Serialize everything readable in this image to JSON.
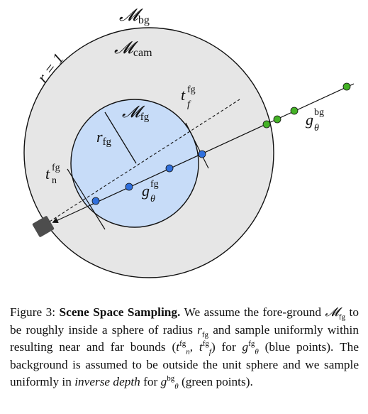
{
  "diagram": {
    "labels": {
      "m_bg": {
        "main": "𝓜",
        "sub": "bg"
      },
      "m_cam": {
        "main": "𝓜",
        "sub": "cam"
      },
      "radius_outer": "r = 1",
      "m_fg": {
        "main": "𝓜",
        "sub": "fg"
      },
      "r_fg": {
        "main": "r",
        "sub": "fg"
      },
      "t_f": {
        "main": "t",
        "sup": "fg",
        "sub": "f"
      },
      "t_n": {
        "main": "t",
        "sup": "fg",
        "sub": "n"
      },
      "g_fg": {
        "main": "g",
        "sup": "fg",
        "sub": "θ"
      },
      "g_bg": {
        "main": "g",
        "sup": "bg",
        "sub": "θ"
      }
    },
    "colors": {
      "outer_fill": "#e6e6e6",
      "inner_fill": "#c7dcf8",
      "blue_point": "#2f6fdc",
      "green_point": "#44b226",
      "camera": "#4d4d4d"
    },
    "icons": {
      "camera": "camera-icon"
    }
  },
  "caption": {
    "figure_label": "Figure 3:",
    "title": "Scene Space Sampling.",
    "text1": " We assume the fore-ground ",
    "m_fg_main": "𝓜",
    "m_fg_sub": "fg",
    "text2": " to be roughly inside a sphere of radius ",
    "r_main": "r",
    "r_sub": "fg",
    "text3": " and sample uniformly within resulting near and far bounds (",
    "tn_main": "t",
    "tn_sup": "fg",
    "tn_sub": "n",
    "comma": ", ",
    "tf_main": "t",
    "tf_sup": "fg",
    "tf_sub": "f",
    "text4": ") for ",
    "gfg_main": "g",
    "gfg_sup": "fg",
    "gfg_sub": "θ",
    "text5": " (blue points). The background is assumed to be outside the unit sphere and we sample uniformly in ",
    "italic_phrase": "inverse depth",
    "text6": " for ",
    "gbg_main": "g",
    "gbg_sup": "bg",
    "gbg_sub": "θ",
    "text7": " (green points)."
  }
}
